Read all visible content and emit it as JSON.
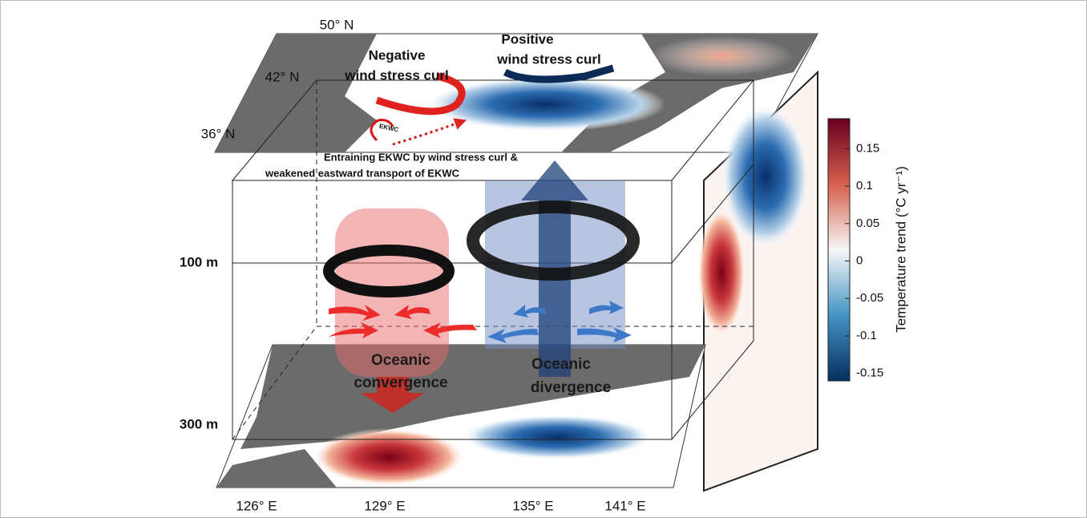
{
  "latitudes": [
    "50° N",
    "42° N",
    "36° N"
  ],
  "longitudes": [
    "126° E",
    "129° E",
    "135° E",
    "141° E"
  ],
  "negative_curl": [
    "Negative",
    "wind stress curl"
  ],
  "positive_curl": [
    "Positive",
    "wind stress curl"
  ],
  "current_label": "EKWC",
  "entrain_note": [
    "Entraining EKWC by wind stress curl &",
    "weakened eastward transport of EKWC"
  ],
  "depths": [
    "100 m",
    "300 m"
  ],
  "convergence": [
    "Oceanic",
    "convergence"
  ],
  "divergence": [
    "Oceanic",
    "divergence"
  ],
  "colorbar": {
    "label": "Temperature trend (°C yr⁻¹)",
    "lim": [
      -0.16,
      0.19
    ],
    "ticks": [
      0.15,
      0.1,
      0.05,
      0,
      -0.05,
      -0.1,
      -0.15
    ]
  }
}
